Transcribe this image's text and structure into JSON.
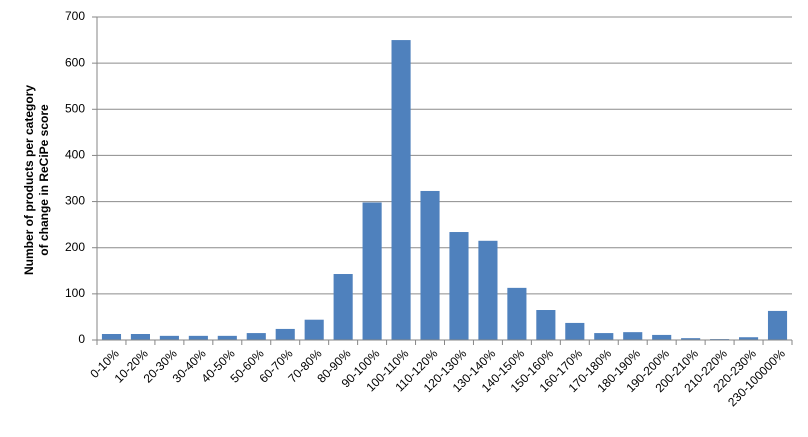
{
  "chart_data": {
    "type": "bar",
    "y_label": [
      "Number of products per category",
      "of change in ReCiPe score"
    ],
    "categories": [
      "0-10%",
      "10-20%",
      "20-30%",
      "30-40%",
      "40-50%",
      "50-60%",
      "60-70%",
      "70-80%",
      "80-90%",
      "90-100%",
      "100-110%",
      "110-120%",
      "120-130%",
      "130-140%",
      "140-150%",
      "150-160%",
      "160-170%",
      "170-180%",
      "180-190%",
      "190-200%",
      "200-210%",
      "210-220%",
      "220-230%",
      "230-100000%"
    ],
    "values": [
      13,
      13,
      9,
      9,
      9,
      15,
      24,
      44,
      143,
      298,
      650,
      323,
      234,
      215,
      113,
      65,
      37,
      15,
      17,
      11,
      4,
      2,
      6,
      63
    ],
    "color": "#4f81bd",
    "ylim": [
      0,
      700
    ],
    "yticks": [
      0,
      100,
      200,
      300,
      400,
      500,
      600,
      700
    ],
    "grid": true
  }
}
